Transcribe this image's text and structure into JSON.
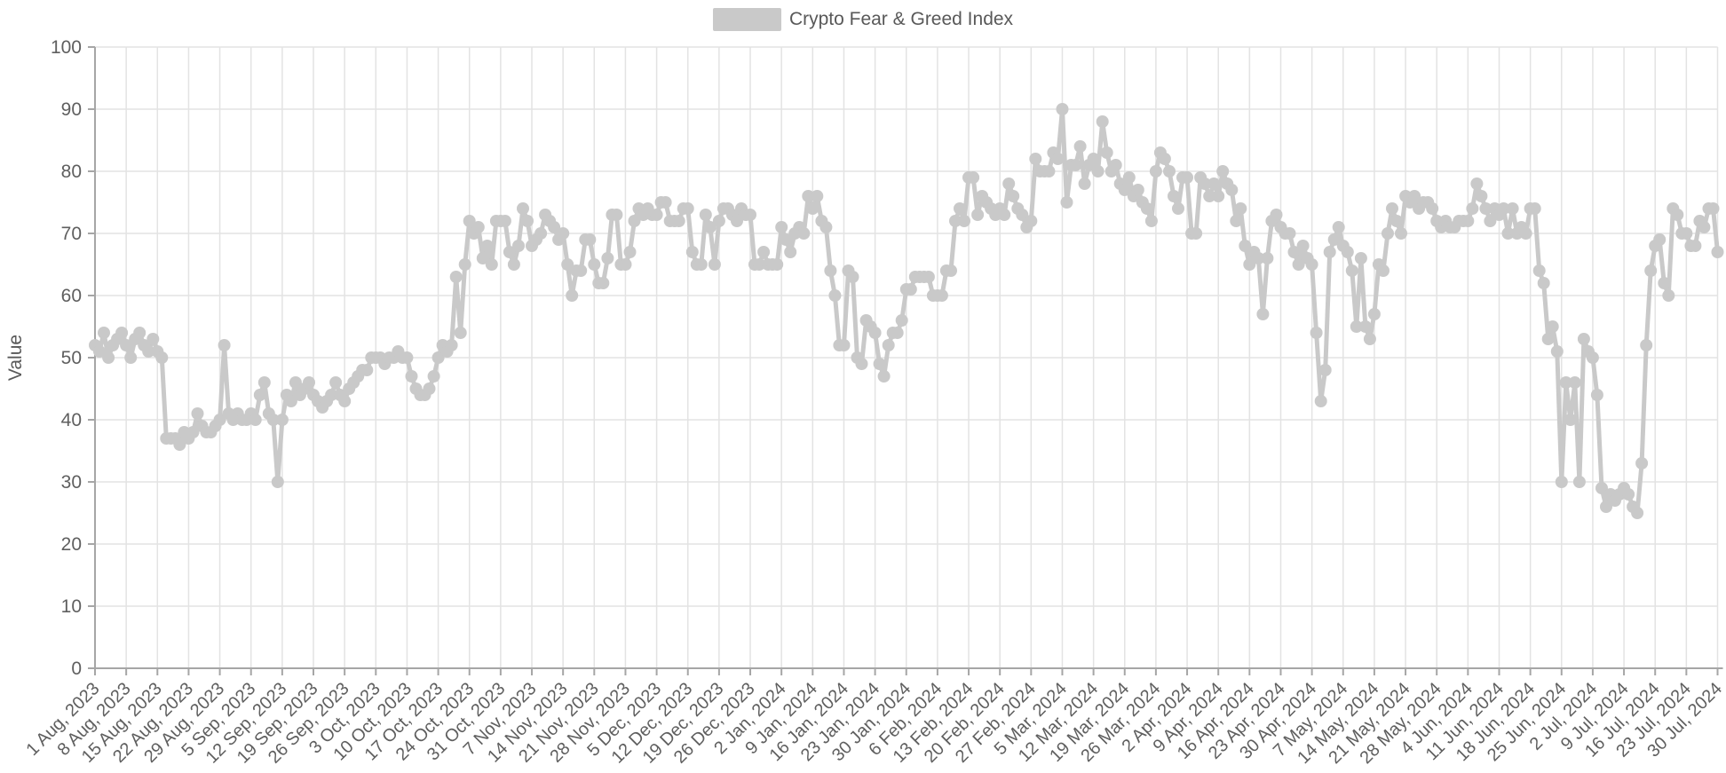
{
  "legend": {
    "position": "top"
  },
  "colors": {
    "series": "#c9c9c9",
    "grid": "#e3e3e3",
    "axis": "#a6a6a6",
    "tick_text": "#5f5f5f",
    "axis_title_text": "#595959",
    "background": "#ffffff"
  },
  "chart_data": {
    "type": "line",
    "title": "",
    "xlabel": "",
    "ylabel": "Value",
    "ylim": [
      0,
      100
    ],
    "y_ticks": [
      0,
      10,
      20,
      30,
      40,
      50,
      60,
      70,
      80,
      90,
      100
    ],
    "grid": true,
    "legend_position": "top-center",
    "marker": "circle",
    "x_start": "2023-08-01",
    "x_end": "2024-07-30",
    "frequency": "daily",
    "x_tick_interval_days": 7,
    "x_tick_labels": [
      "1 Aug, 2023",
      "8 Aug, 2023",
      "15 Aug, 2023",
      "22 Aug, 2023",
      "29 Aug, 2023",
      "5 Sep, 2023",
      "12 Sep, 2023",
      "19 Sep, 2023",
      "26 Sep, 2023",
      "3 Oct, 2023",
      "10 Oct, 2023",
      "17 Oct, 2023",
      "24 Oct, 2023",
      "31 Oct, 2023",
      "7 Nov, 2023",
      "14 Nov, 2023",
      "21 Nov, 2023",
      "28 Nov, 2023",
      "5 Dec, 2023",
      "12 Dec, 2023",
      "19 Dec, 2023",
      "26 Dec, 2023",
      "2 Jan, 2024",
      "9 Jan, 2024",
      "16 Jan, 2024",
      "23 Jan, 2024",
      "30 Jan, 2024",
      "6 Feb, 2024",
      "13 Feb, 2024",
      "20 Feb, 2024",
      "27 Feb, 2024",
      "5 Mar, 2024",
      "12 Mar, 2024",
      "19 Mar, 2024",
      "26 Mar, 2024",
      "2 Apr, 2024",
      "9 Apr, 2024",
      "16 Apr, 2024",
      "23 Apr, 2024",
      "30 Apr, 2024",
      "7 May, 2024",
      "14 May, 2024",
      "21 May, 2024",
      "28 May, 2024",
      "4 Jun, 2024",
      "11 Jun, 2024",
      "18 Jun, 2024",
      "25 Jun, 2024",
      "2 Jul, 2024",
      "9 Jul, 2024",
      "16 Jul, 2024",
      "23 Jul, 2024",
      "30 Jul, 2024"
    ],
    "series": [
      {
        "name": "Crypto Fear & Greed Index",
        "values": [
          52,
          51,
          54,
          50,
          52,
          53,
          54,
          52,
          50,
          53,
          54,
          52,
          51,
          53,
          51,
          50,
          37,
          37,
          37,
          36,
          38,
          37,
          38,
          41,
          39,
          38,
          38,
          39,
          40,
          52,
          41,
          40,
          41,
          40,
          40,
          41,
          40,
          44,
          46,
          41,
          40,
          30,
          40,
          44,
          43,
          46,
          44,
          45,
          46,
          44,
          43,
          42,
          43,
          44,
          46,
          44,
          43,
          45,
          46,
          47,
          48,
          48,
          50,
          50,
          50,
          49,
          50,
          50,
          51,
          50,
          50,
          47,
          45,
          44,
          44,
          45,
          47,
          50,
          52,
          51,
          52,
          63,
          54,
          65,
          72,
          70,
          71,
          66,
          68,
          65,
          72,
          72,
          72,
          67,
          65,
          68,
          74,
          72,
          68,
          69,
          70,
          73,
          72,
          71,
          69,
          70,
          65,
          60,
          64,
          64,
          69,
          69,
          65,
          62,
          62,
          66,
          73,
          73,
          65,
          65,
          67,
          72,
          74,
          73,
          74,
          73,
          73,
          75,
          75,
          72,
          72,
          72,
          74,
          74,
          67,
          65,
          65,
          73,
          71,
          65,
          72,
          74,
          74,
          73,
          72,
          74,
          73,
          73,
          65,
          65,
          67,
          65,
          65,
          65,
          71,
          69,
          67,
          70,
          71,
          70,
          76,
          74,
          76,
          72,
          71,
          64,
          60,
          52,
          52,
          64,
          63,
          50,
          49,
          56,
          55,
          54,
          49,
          47,
          52,
          54,
          54,
          56,
          61,
          61,
          63,
          63,
          63,
          63,
          60,
          60,
          60,
          64,
          64,
          72,
          74,
          72,
          79,
          79,
          73,
          76,
          75,
          74,
          73,
          74,
          73,
          78,
          76,
          74,
          73,
          71,
          72,
          82,
          80,
          80,
          80,
          83,
          82,
          90,
          75,
          81,
          81,
          84,
          78,
          81,
          82,
          80,
          88,
          83,
          80,
          81,
          78,
          77,
          79,
          76,
          77,
          75,
          74,
          72,
          80,
          83,
          82,
          80,
          76,
          74,
          79,
          79,
          70,
          70,
          79,
          78,
          76,
          78,
          76,
          80,
          78,
          77,
          72,
          74,
          68,
          65,
          67,
          66,
          57,
          66,
          72,
          73,
          71,
          70,
          70,
          67,
          65,
          68,
          66,
          65,
          54,
          43,
          48,
          67,
          69,
          71,
          68,
          67,
          64,
          55,
          66,
          55,
          53,
          57,
          65,
          64,
          70,
          74,
          72,
          70,
          76,
          75,
          76,
          74,
          75,
          75,
          74,
          72,
          71,
          72,
          71,
          71,
          72,
          72,
          72,
          74,
          78,
          76,
          74,
          72,
          74,
          73,
          74,
          70,
          74,
          70,
          71,
          70,
          74,
          74,
          64,
          62,
          53,
          55,
          51,
          30,
          46,
          40,
          46,
          30,
          53,
          51,
          50,
          44,
          29,
          26,
          28,
          27,
          28,
          29,
          28,
          26,
          25,
          33,
          52,
          64,
          68,
          69,
          62,
          60,
          74,
          73,
          70,
          70,
          68,
          68,
          72,
          71,
          74,
          74,
          67
        ]
      }
    ]
  }
}
